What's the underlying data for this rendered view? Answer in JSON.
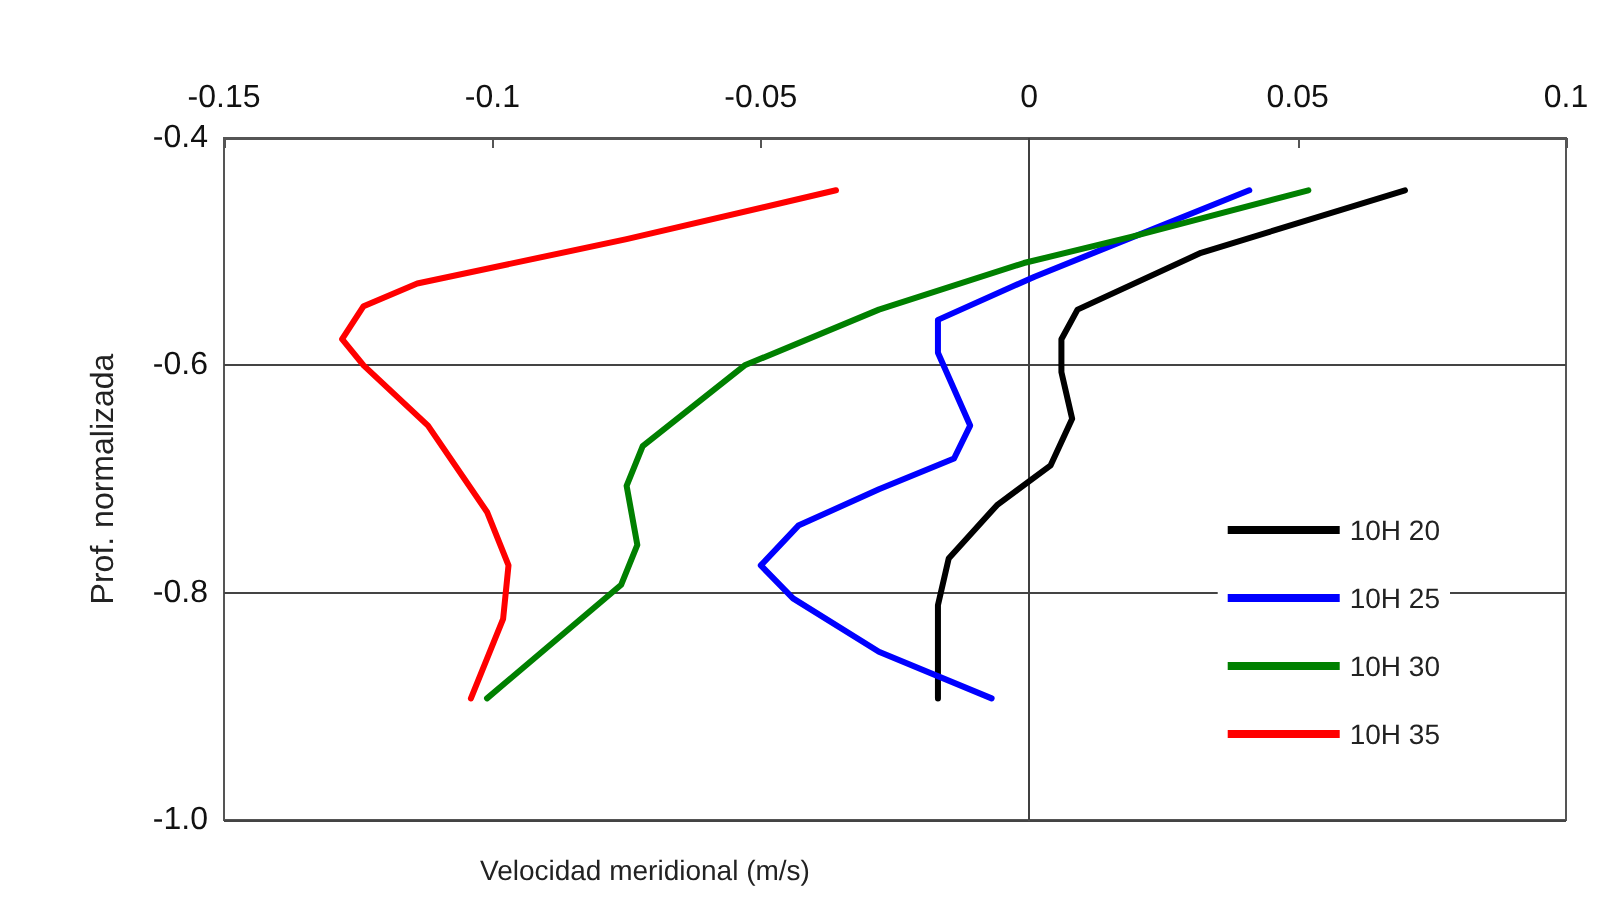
{
  "chart_data": {
    "type": "line",
    "xlabel": "Velocidad meridional (m/s)",
    "ylabel": "Prof. normalizada",
    "xlim": [
      -0.15,
      0.1
    ],
    "xticks": [
      -0.15,
      -0.1,
      -0.05,
      0,
      0.05,
      0.1
    ],
    "ylim": [
      -1.0,
      -0.4
    ],
    "yticks": [
      -0.4,
      -0.6,
      -0.8,
      {
        "value": -1.0,
        "label": "-1.0"
      }
    ],
    "grid": "y",
    "legend": "bottom right",
    "marker": "none",
    "line_style": "solid",
    "ref_lines": [
      {
        "axis": "x",
        "value": 0,
        "label": null,
        "color": "#404040"
      }
    ],
    "series": [
      {
        "name": "10H 20",
        "color": "#000000",
        "x": [
          0.07,
          0.032,
          0.009,
          0.006,
          0.006,
          0.008,
          0.004,
          -0.006,
          -0.015,
          -0.017,
          -0.017
        ],
        "values": [
          -0.446,
          -0.501,
          -0.551,
          -0.577,
          -0.606,
          -0.647,
          -0.688,
          -0.723,
          -0.77,
          -0.811,
          -0.893
        ]
      },
      {
        "name": "10H 25",
        "color": "#0000ff",
        "x": [
          0.041,
          0.001,
          -0.017,
          -0.017,
          -0.011,
          -0.014,
          -0.028,
          -0.043,
          -0.05,
          -0.044,
          -0.028,
          -0.007
        ],
        "values": [
          -0.446,
          -0.522,
          -0.56,
          -0.589,
          -0.653,
          -0.682,
          -0.709,
          -0.741,
          -0.776,
          -0.805,
          -0.852,
          -0.893
        ]
      },
      {
        "name": "10H 30",
        "color": "#008000",
        "x": [
          0.052,
          0.019,
          -0.001,
          -0.028,
          -0.053,
          -0.072,
          -0.075,
          -0.073,
          -0.076,
          -0.101
        ],
        "values": [
          -0.446,
          -0.487,
          -0.51,
          -0.551,
          -0.6,
          -0.671,
          -0.706,
          -0.758,
          -0.793,
          -0.893
        ]
      },
      {
        "name": "10H 35",
        "color": "#ff0000",
        "x": [
          -0.036,
          -0.075,
          -0.114,
          -0.124,
          -0.128,
          -0.124,
          -0.112,
          -0.101,
          -0.097,
          -0.098,
          -0.104
        ],
        "values": [
          -0.446,
          -0.489,
          -0.528,
          -0.548,
          -0.577,
          -0.6,
          -0.653,
          -0.729,
          -0.776,
          -0.823,
          -0.893
        ]
      }
    ]
  }
}
